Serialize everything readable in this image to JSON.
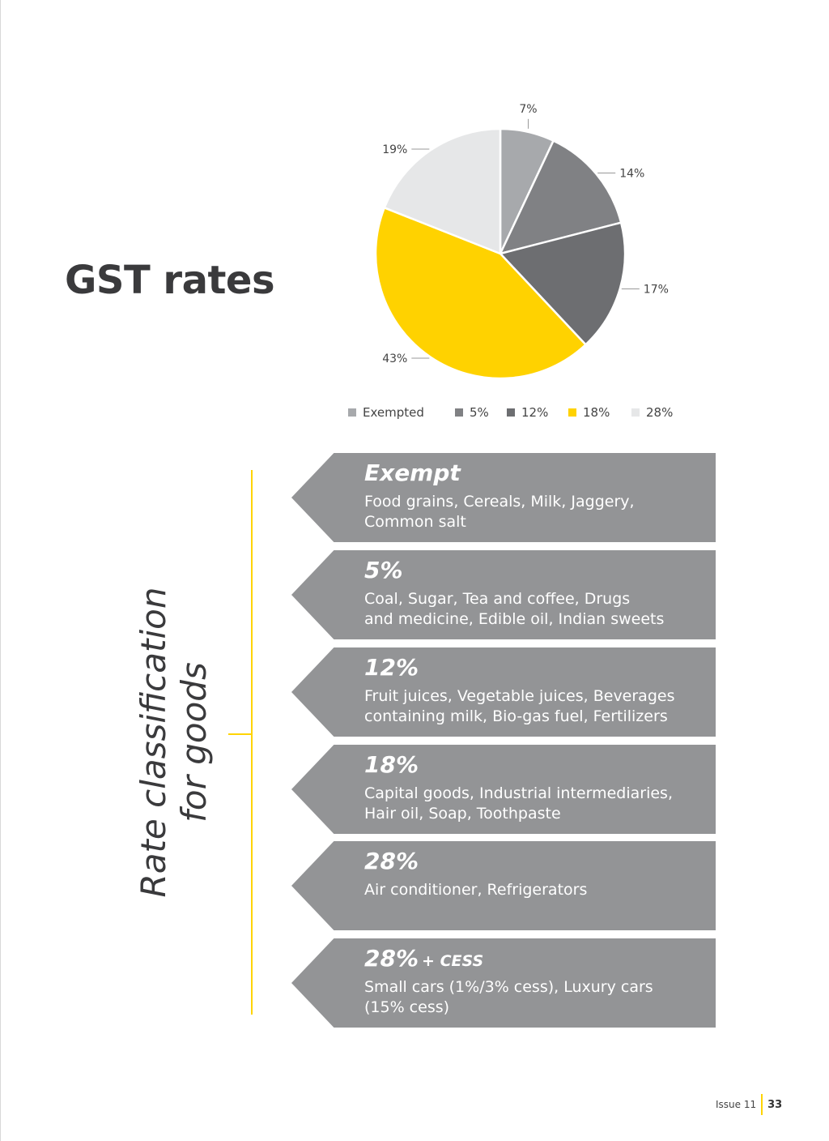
{
  "page": {
    "title": "GST rates",
    "side_title_line1": "Rate classification",
    "side_title_line2": "for goods"
  },
  "chart_data": {
    "type": "pie",
    "title": "",
    "categories": [
      "Exempted",
      "5%",
      "12%",
      "18%",
      "28%"
    ],
    "values": [
      7,
      14,
      17,
      43,
      19
    ],
    "labels": [
      "7%",
      "14%",
      "17%",
      "43%",
      "19%"
    ],
    "colors": [
      "#a7a9ac",
      "#808184",
      "#6d6e71",
      "#ffd200",
      "#e6e7e8"
    ],
    "legend": {
      "position": "bottom",
      "labels": [
        "Exempted",
        "5%",
        "12%",
        "18%",
        "28%"
      ]
    }
  },
  "rates": [
    {
      "heading": "Exempt",
      "suffix": "",
      "desc_line1": "Food grains, Cereals, Milk, Jaggery,",
      "desc_line2": "Common salt"
    },
    {
      "heading": "5%",
      "suffix": "",
      "desc_line1": "Coal, Sugar, Tea and coffee, Drugs",
      "desc_line2": "and medicine, Edible oil, Indian sweets"
    },
    {
      "heading": "12%",
      "suffix": "",
      "desc_line1": "Fruit juices, Vegetable juices, Beverages",
      "desc_line2": "containing milk, Bio-gas fuel, Fertilizers"
    },
    {
      "heading": "18%",
      "suffix": "",
      "desc_line1": "Capital goods, Industrial intermediaries,",
      "desc_line2": "Hair oil, Soap, Toothpaste"
    },
    {
      "heading": "28%",
      "suffix": "",
      "desc_line1": "Air conditioner, Refrigerators",
      "desc_line2": ""
    },
    {
      "heading": "28%",
      "suffix": "+ CESS",
      "desc_line1": "Small cars (1%/3% cess), Luxury cars",
      "desc_line2": "(15% cess)"
    }
  ],
  "footer": {
    "issue": "Issue 11",
    "page_number": "33"
  }
}
